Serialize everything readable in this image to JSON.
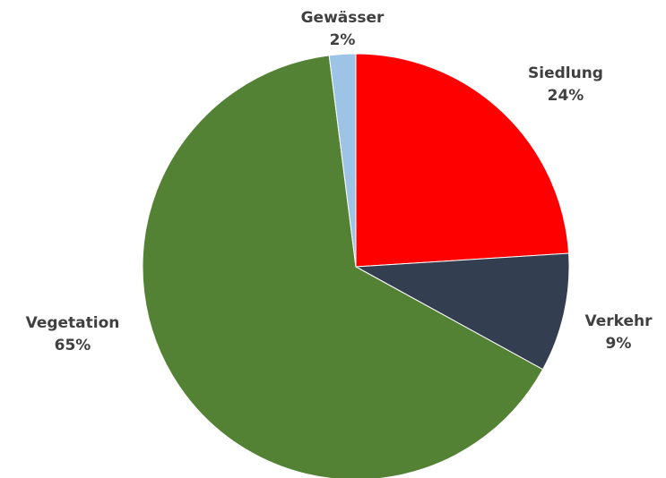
{
  "chart_data": {
    "type": "pie",
    "title": "",
    "start_angle_deg": 0,
    "direction": "clockwise",
    "legend": "none",
    "slices": [
      {
        "label": "Siedlung",
        "value": 24,
        "value_label": "24%",
        "color": "#ff0000"
      },
      {
        "label": "Verkehr",
        "value": 9,
        "value_label": "9%",
        "color": "#333f50"
      },
      {
        "label": "Vegetation",
        "value": 65,
        "value_label": "65%",
        "color": "#548235"
      },
      {
        "label": "Gewässer",
        "value": 2,
        "value_label": "2%",
        "color": "#9dc3e6"
      }
    ]
  }
}
